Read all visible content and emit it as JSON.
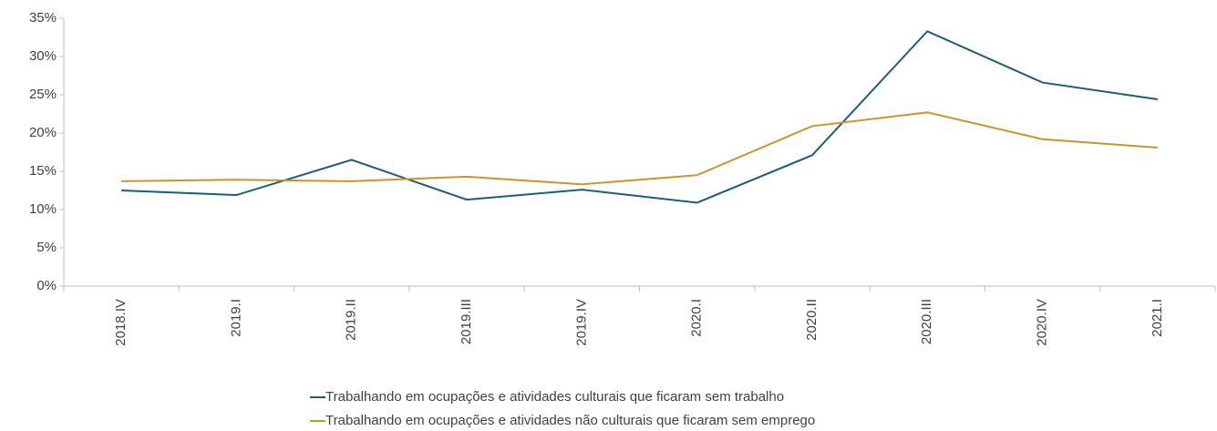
{
  "chart_data": {
    "type": "line",
    "categories": [
      "2018.IV",
      "2019.I",
      "2019.II",
      "2019.III",
      "2019.IV",
      "2020.I",
      "2020.II",
      "2020.III",
      "2020.IV",
      "2021.I"
    ],
    "series": [
      {
        "name": "Trabalhando em ocupações e atividades culturais que ficaram sem trabalho",
        "color": "#1f5c78",
        "values": [
          12.5,
          11.9,
          16.5,
          11.3,
          12.6,
          10.9,
          17.1,
          33.3,
          26.6,
          24.4
        ]
      },
      {
        "name": "Trabalhando em ocupações e atividades não culturais que ficaram sem emprego",
        "color": "#c9962b",
        "values": [
          13.7,
          13.9,
          13.7,
          14.3,
          13.3,
          14.5,
          20.9,
          22.7,
          19.2,
          18.1
        ]
      }
    ],
    "ylim": [
      0,
      35
    ],
    "yticks": [
      {
        "value": 0,
        "label": "0%"
      },
      {
        "value": 5,
        "label": "5%"
      },
      {
        "value": 10,
        "label": "10%"
      },
      {
        "value": 15,
        "label": "15%"
      },
      {
        "value": 20,
        "label": "20%"
      },
      {
        "value": 25,
        "label": "25%"
      },
      {
        "value": 30,
        "label": "30%"
      },
      {
        "value": 35,
        "label": "35%"
      }
    ],
    "grid": false
  }
}
